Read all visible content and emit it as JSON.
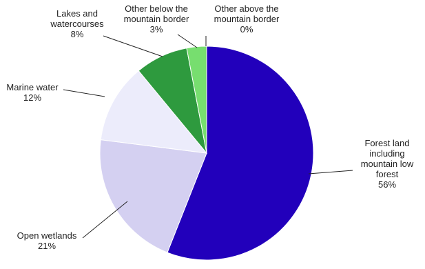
{
  "chart_data": {
    "type": "pie",
    "categories": [
      "Forest land including mountain low forest",
      "Open wetlands",
      "Marine water",
      "Lakes and watercourses",
      "Other below the mountain border",
      "Other above the mountain border"
    ],
    "values": [
      56,
      21,
      12,
      8,
      3,
      0
    ],
    "value_labels": [
      "56%",
      "21%",
      "12%",
      "8%",
      "3%",
      "0%"
    ],
    "colors": [
      "#2200bb",
      "#d4d0f1",
      "#ececfb",
      "#2e9a3e",
      "#77de6f",
      "#9ee890"
    ]
  }
}
